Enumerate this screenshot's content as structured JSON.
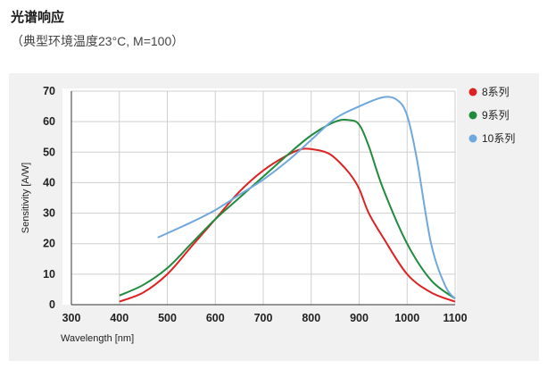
{
  "header": {
    "title": "光谱响应",
    "subtitle": "（典型环境温度23°C, M=100）"
  },
  "chart_data": {
    "type": "line",
    "xlabel": "Wavelength [nm]",
    "ylabel": "Sensitivity [A/W]",
    "xlim": [
      300,
      1100
    ],
    "ylim": [
      0,
      70
    ],
    "xticks": [
      300,
      400,
      500,
      600,
      700,
      800,
      900,
      1000,
      1100
    ],
    "yticks": [
      0,
      10,
      20,
      30,
      40,
      50,
      60,
      70
    ],
    "grid": true,
    "legend": "right",
    "series": [
      {
        "name": "8系列",
        "color": "#dd2222",
        "x": [
          400,
          450,
          500,
          550,
          600,
          650,
          700,
          750,
          780,
          800,
          830,
          850,
          880,
          900,
          920,
          950,
          1000,
          1050,
          1100
        ],
        "y": [
          1,
          4,
          10,
          19,
          28,
          37,
          44,
          49,
          51,
          51,
          50,
          48,
          43,
          38,
          30,
          22,
          10,
          4,
          1
        ]
      },
      {
        "name": "9系列",
        "color": "#218a3c",
        "x": [
          400,
          450,
          500,
          550,
          600,
          650,
          700,
          750,
          800,
          850,
          880,
          900,
          920,
          950,
          1000,
          1050,
          1100
        ],
        "y": [
          3,
          6.5,
          12,
          20,
          28,
          35,
          42,
          49,
          55.5,
          60,
          60.5,
          59,
          52,
          38,
          20,
          8,
          2
        ]
      },
      {
        "name": "10系列",
        "color": "#6fa8dc",
        "x": [
          480,
          550,
          600,
          650,
          700,
          750,
          800,
          850,
          900,
          950,
          980,
          1000,
          1020,
          1050,
          1080,
          1100
        ],
        "y": [
          22,
          27,
          31,
          36,
          41,
          47,
          54,
          61,
          65,
          68,
          67,
          62,
          48,
          20,
          6,
          2
        ]
      }
    ]
  }
}
